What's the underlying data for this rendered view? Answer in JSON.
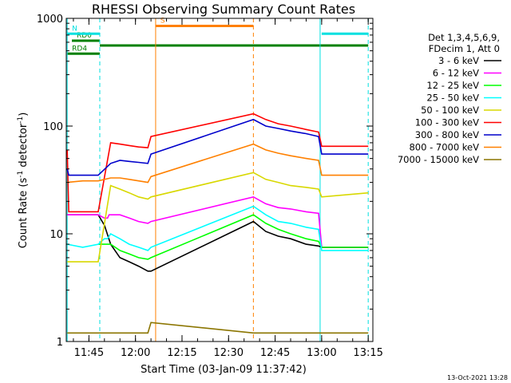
{
  "chart_data": {
    "type": "line",
    "title": "RHESSI Observing Summary Count Rates",
    "xlabel": "Start Time (03-Jan-09 11:37:42)",
    "ylabel_prefix": "Count Rate (s",
    "ylabel_exp": "-1",
    "ylabel_mid": " detector",
    "ylabel_suffix": ")",
    "y_scale": "log",
    "ylim": [
      1,
      1000
    ],
    "xlim": [
      "11:37:42",
      "13:16:30"
    ],
    "x_ticks": [
      {
        "t": "11:45",
        "label": "11:45"
      },
      {
        "t": "12:00",
        "label": "12:00"
      },
      {
        "t": "12:15",
        "label": "12:15"
      },
      {
        "t": "12:30",
        "label": "12:30"
      },
      {
        "t": "12:45",
        "label": "12:45"
      },
      {
        "t": "13:00",
        "label": "13:00"
      },
      {
        "t": "13:15",
        "label": "13:15"
      }
    ],
    "y_major_ticks": [
      {
        "v": 1,
        "label": "1"
      },
      {
        "v": 10,
        "label": "10"
      },
      {
        "v": 100,
        "label": "100"
      },
      {
        "v": 1000,
        "label": "1000"
      }
    ],
    "legend": {
      "placement": "right",
      "header": [
        "Det 1,3,4,5,6,9,",
        "FDecim 1, Att 0"
      ]
    },
    "series": [
      {
        "name": "3 - 6 keV",
        "color": "#000000",
        "points": [
          [
            "11:38",
            "15"
          ],
          [
            "11:43",
            "15"
          ],
          [
            "11:48",
            "15"
          ],
          [
            "11:50",
            "12"
          ],
          [
            "11:52",
            "8"
          ],
          [
            "11:55",
            "6"
          ],
          [
            "11:58",
            "5.5"
          ],
          [
            "12:01",
            "5"
          ],
          [
            "12:04",
            "4.5"
          ],
          [
            "12:05",
            "4.5"
          ],
          [
            "12:38",
            "13"
          ],
          [
            "12:42",
            "10.5"
          ],
          [
            "12:46",
            "9.5"
          ],
          [
            "12:50",
            "9"
          ],
          [
            "12:55",
            "8"
          ],
          [
            "12:59",
            "7.7"
          ],
          [
            "13:00",
            "7.5"
          ],
          [
            "13:15",
            "7.5"
          ]
        ]
      },
      {
        "name": "6 - 12 keV",
        "color": "#ff00ff",
        "points": [
          [
            "11:38",
            "15"
          ],
          [
            "11:43",
            "15"
          ],
          [
            "11:48",
            "15"
          ],
          [
            "11:50",
            "14"
          ],
          [
            "11:51",
            "14"
          ],
          [
            "11:51.5",
            "15"
          ],
          [
            "11:55",
            "15"
          ],
          [
            "11:58",
            "14"
          ],
          [
            "12:01",
            "13"
          ],
          [
            "12:04",
            "12.5"
          ],
          [
            "12:05",
            "13"
          ],
          [
            "12:38",
            "22"
          ],
          [
            "12:42",
            "19"
          ],
          [
            "12:46",
            "17.5"
          ],
          [
            "12:50",
            "17"
          ],
          [
            "12:55",
            "16"
          ],
          [
            "12:59",
            "15.5"
          ],
          [
            "13:00",
            "7.5"
          ],
          [
            "13:15",
            "7.5"
          ]
        ]
      },
      {
        "name": "12 - 25 keV",
        "color": "#00ff00",
        "points": [
          [
            "11:48",
            "8"
          ],
          [
            "11:51",
            "8"
          ],
          [
            "11:52",
            "8"
          ],
          [
            "11:55",
            "7"
          ],
          [
            "11:58",
            "6.5"
          ],
          [
            "12:01",
            "6"
          ],
          [
            "12:04",
            "5.8"
          ],
          [
            "12:05",
            "6"
          ],
          [
            "12:38",
            "15"
          ],
          [
            "12:42",
            "12.5"
          ],
          [
            "12:46",
            "11"
          ],
          [
            "12:50",
            "10"
          ],
          [
            "12:55",
            "9"
          ],
          [
            "12:59",
            "8.5"
          ],
          [
            "13:00",
            "7.5"
          ],
          [
            "13:15",
            "7.5"
          ]
        ]
      },
      {
        "name": "25 - 50 keV",
        "color": "#00ffff",
        "points": [
          [
            "11:38",
            "8"
          ],
          [
            "11:43",
            "7.5"
          ],
          [
            "11:48",
            "8"
          ],
          [
            "11:50",
            "9"
          ],
          [
            "11:51",
            "9"
          ],
          [
            "11:52",
            "10"
          ],
          [
            "11:55",
            "9"
          ],
          [
            "11:58",
            "8"
          ],
          [
            "12:01",
            "7.5"
          ],
          [
            "12:04",
            "7"
          ],
          [
            "12:05",
            "7.5"
          ],
          [
            "12:38",
            "18"
          ],
          [
            "12:42",
            "15"
          ],
          [
            "12:46",
            "13"
          ],
          [
            "12:50",
            "12.5"
          ],
          [
            "12:55",
            "11.5"
          ],
          [
            "12:59",
            "11"
          ],
          [
            "13:00",
            "7"
          ],
          [
            "13:15",
            "7"
          ]
        ]
      },
      {
        "name": "50 - 100 keV",
        "color": "#d8d800",
        "points": [
          [
            "11:38",
            "5.5"
          ],
          [
            "11:43",
            "5.5"
          ],
          [
            "11:48",
            "5.5"
          ],
          [
            "11:52",
            "28"
          ],
          [
            "11:55",
            "26"
          ],
          [
            "11:58",
            "24"
          ],
          [
            "12:01",
            "22"
          ],
          [
            "12:04",
            "21"
          ],
          [
            "12:05",
            "22"
          ],
          [
            "12:38",
            "37"
          ],
          [
            "12:42",
            "32"
          ],
          [
            "12:46",
            "30"
          ],
          [
            "12:50",
            "28"
          ],
          [
            "12:55",
            "27"
          ],
          [
            "12:59",
            "26"
          ],
          [
            "13:00",
            "22"
          ],
          [
            "13:15",
            "24"
          ]
        ]
      },
      {
        "name": "100 - 300 keV",
        "color": "#ff0000",
        "points": [
          [
            "11:38",
            "60"
          ],
          [
            "11:38.5",
            "16"
          ],
          [
            "11:43",
            "16"
          ],
          [
            "11:48",
            "16"
          ],
          [
            "11:52",
            "70"
          ],
          [
            "11:55",
            "68"
          ],
          [
            "11:58",
            "66"
          ],
          [
            "12:01",
            "64"
          ],
          [
            "12:04",
            "63"
          ],
          [
            "12:05",
            "80"
          ],
          [
            "12:38",
            "130"
          ],
          [
            "12:42",
            "115"
          ],
          [
            "12:46",
            "105"
          ],
          [
            "12:50",
            "100"
          ],
          [
            "12:55",
            "93"
          ],
          [
            "12:59",
            "88"
          ],
          [
            "13:00",
            "65"
          ],
          [
            "13:15",
            "65"
          ]
        ]
      },
      {
        "name": "300 - 800 keV",
        "color": "#0000cc",
        "points": [
          [
            "11:38",
            "40"
          ],
          [
            "11:38.5",
            "35"
          ],
          [
            "11:43",
            "35"
          ],
          [
            "11:48",
            "35"
          ],
          [
            "11:52",
            "45"
          ],
          [
            "11:55",
            "48"
          ],
          [
            "11:58",
            "47"
          ],
          [
            "12:01",
            "46"
          ],
          [
            "12:04",
            "45"
          ],
          [
            "12:05",
            "55"
          ],
          [
            "12:38",
            "115"
          ],
          [
            "12:42",
            "100"
          ],
          [
            "12:46",
            "95"
          ],
          [
            "12:50",
            "90"
          ],
          [
            "12:55",
            "85"
          ],
          [
            "12:59",
            "80"
          ],
          [
            "13:00",
            "55"
          ],
          [
            "13:15",
            "55"
          ]
        ]
      },
      {
        "name": "800 - 7000 keV",
        "color": "#ff8000",
        "points": [
          [
            "11:38",
            "30"
          ],
          [
            "11:43",
            "31"
          ],
          [
            "11:48",
            "31"
          ],
          [
            "11:52",
            "33"
          ],
          [
            "11:55",
            "33"
          ],
          [
            "11:58",
            "32"
          ],
          [
            "12:01",
            "31"
          ],
          [
            "12:04",
            "30"
          ],
          [
            "12:05",
            "34"
          ],
          [
            "12:38",
            "68"
          ],
          [
            "12:42",
            "60"
          ],
          [
            "12:46",
            "56"
          ],
          [
            "12:50",
            "53"
          ],
          [
            "12:55",
            "50"
          ],
          [
            "12:59",
            "48"
          ],
          [
            "13:00",
            "35"
          ],
          [
            "13:15",
            "35"
          ]
        ]
      },
      {
        "name": "7000 - 15000 keV",
        "color": "#8b7500",
        "points": [
          [
            "11:38",
            "1.2"
          ],
          [
            "11:48",
            "1.2"
          ],
          [
            "12:04",
            "1.2"
          ],
          [
            "12:05",
            "1.5"
          ],
          [
            "12:38",
            "1.2"
          ],
          [
            "13:00",
            "1.2"
          ],
          [
            "13:15",
            "1.2"
          ]
        ]
      }
    ],
    "markers": [
      {
        "type": "bar",
        "label": "RD0",
        "color": "#008000",
        "from": "11:39.5",
        "to": "11:48.5",
        "y": 620
      },
      {
        "type": "bar",
        "label": "RD4",
        "color": "#008000",
        "from": "11:38",
        "to": "11:48.5",
        "y": 470
      },
      {
        "type": "bar",
        "label": "",
        "color": "#008000",
        "from": "11:48.5",
        "to": "13:15",
        "y": 560
      },
      {
        "type": "bar",
        "label": "N",
        "color": "#00e0e0",
        "from": "11:38",
        "to": "11:48.5",
        "y": 720
      },
      {
        "type": "bar",
        "label": "",
        "color": "#00e0e0",
        "from": "13:00",
        "to": "13:15",
        "y": 720
      },
      {
        "type": "bar",
        "label": "S",
        "color": "#ff8000",
        "from": "12:06.5",
        "to": "12:38",
        "y": 850
      },
      {
        "type": "vline",
        "color": "#00e0e0",
        "t": "11:38",
        "style": "solid"
      },
      {
        "type": "vline",
        "color": "#00e0e0",
        "t": "11:48.5",
        "style": "dashed"
      },
      {
        "type": "vline",
        "color": "#00e0e0",
        "t": "12:59.5",
        "style": "solid"
      },
      {
        "type": "vline",
        "color": "#00e0e0",
        "t": "13:15",
        "style": "dashed"
      },
      {
        "type": "vline",
        "color": "#ff8000",
        "t": "12:06.5",
        "style": "solid"
      },
      {
        "type": "vline",
        "color": "#ff8000",
        "t": "12:38",
        "style": "dashed"
      }
    ]
  },
  "footer": {
    "timestamp": "13-Oct-2021 13:28"
  }
}
